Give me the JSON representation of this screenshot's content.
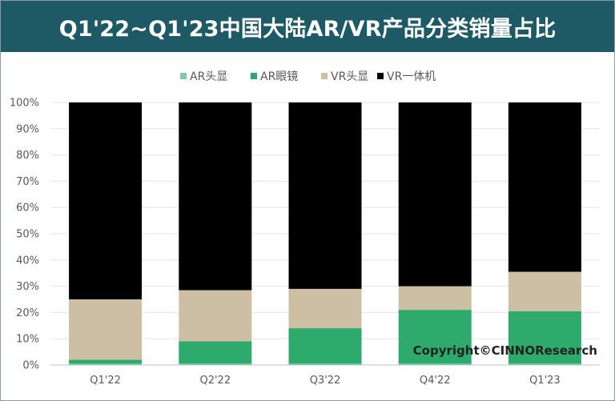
{
  "chart_data": {
    "type": "bar",
    "stacked": true,
    "normalized": true,
    "title": "Q1'22~Q1'23中国大陆AR/VR产品分类销量占比",
    "categories": [
      "Q1'22",
      "Q2'22",
      "Q3'22",
      "Q4'22",
      "Q1'23"
    ],
    "series": [
      {
        "name": "AR头显",
        "color": "#7fc8b0",
        "values": [
          0.5,
          0.5,
          0.5,
          0.5,
          0.5
        ]
      },
      {
        "name": "AR眼镜",
        "color": "#2eaa6c",
        "values": [
          1.5,
          8.5,
          13.5,
          20.5,
          20.0
        ]
      },
      {
        "name": "VR头显",
        "color": "#cdbfa3",
        "values": [
          23.0,
          19.5,
          15.0,
          9.0,
          15.0
        ]
      },
      {
        "name": "VR一体机",
        "color": "#000000",
        "values": [
          75.0,
          71.5,
          71.0,
          70.0,
          64.5
        ]
      }
    ],
    "y_ticks": [
      "0%",
      "10%",
      "20%",
      "30%",
      "40%",
      "50%",
      "60%",
      "70%",
      "80%",
      "90%",
      "100%"
    ],
    "ylim": [
      0,
      100
    ],
    "grid": true,
    "legend_position": "top-center",
    "watermark": "Copyright©CINNOResearch"
  }
}
